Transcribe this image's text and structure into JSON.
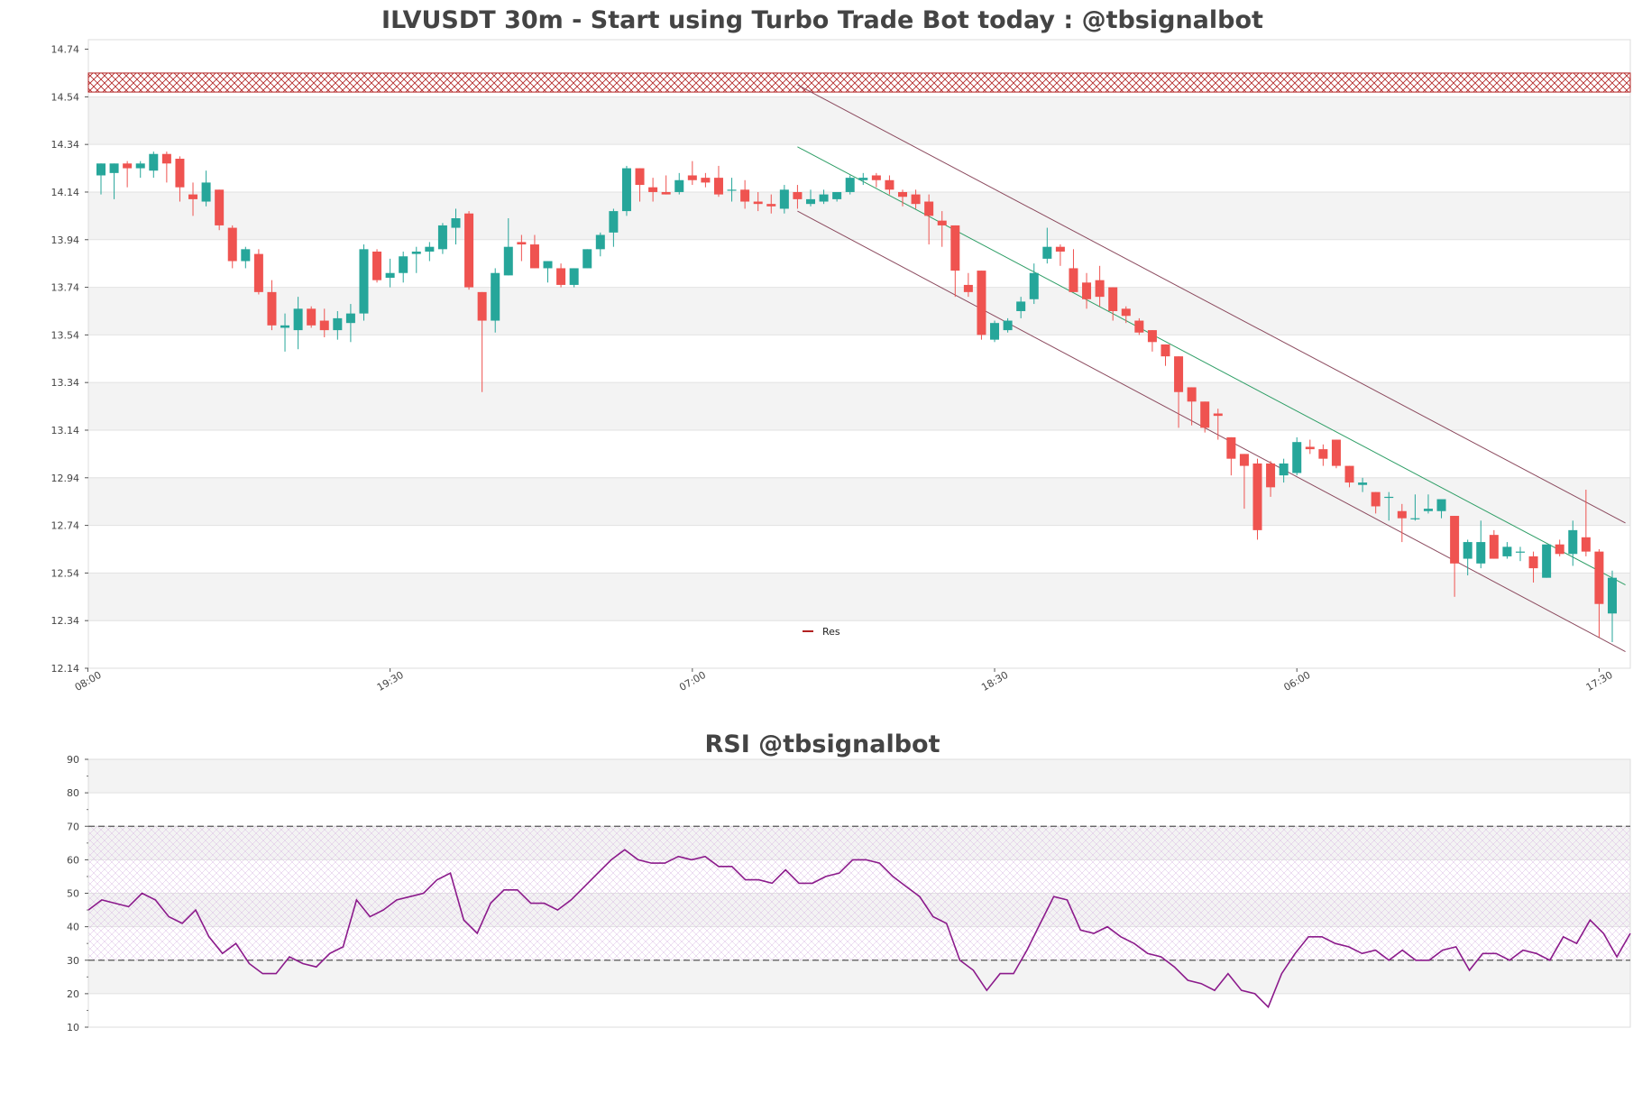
{
  "chart_data": [
    {
      "type": "candlestick",
      "title": "ILVUSDT 30m - Start using Turbo Trade Bot today : @tbsignalbot",
      "symbol": "ILVUSDT",
      "interval": "30m",
      "ylim": [
        12.14,
        14.78
      ],
      "y_ticks": [
        "14.74",
        "14.54",
        "14.34",
        "14.14",
        "13.94",
        "13.74",
        "13.54",
        "13.34",
        "13.14",
        "12.94",
        "12.74",
        "12.54",
        "12.34",
        "12.14"
      ],
      "x_tick_labels": [
        {
          "label": "08:00",
          "index": -1
        },
        {
          "label": "19:30",
          "index": 22
        },
        {
          "label": "07:00",
          "index": 45
        },
        {
          "label": "18:30",
          "index": 68
        },
        {
          "label": "06:00",
          "index": 91
        },
        {
          "label": "17:30",
          "index": 114
        }
      ],
      "candles": [
        [
          14.21,
          14.26,
          14.13,
          14.26
        ],
        [
          14.22,
          14.26,
          14.11,
          14.26
        ],
        [
          14.26,
          14.27,
          14.16,
          14.24
        ],
        [
          14.24,
          14.27,
          14.2,
          14.26
        ],
        [
          14.23,
          14.31,
          14.2,
          14.3
        ],
        [
          14.3,
          14.31,
          14.18,
          14.26
        ],
        [
          14.28,
          14.29,
          14.1,
          14.16
        ],
        [
          14.13,
          14.18,
          14.04,
          14.11
        ],
        [
          14.1,
          14.23,
          14.08,
          14.18
        ],
        [
          14.15,
          14.15,
          13.98,
          14.0
        ],
        [
          13.99,
          14.0,
          13.82,
          13.85
        ],
        [
          13.85,
          13.91,
          13.82,
          13.9
        ],
        [
          13.88,
          13.9,
          13.71,
          13.72
        ],
        [
          13.72,
          13.77,
          13.56,
          13.58
        ],
        [
          13.57,
          13.63,
          13.47,
          13.58
        ],
        [
          13.56,
          13.7,
          13.48,
          13.65
        ],
        [
          13.65,
          13.66,
          13.57,
          13.58
        ],
        [
          13.6,
          13.65,
          13.53,
          13.56
        ],
        [
          13.56,
          13.64,
          13.52,
          13.61
        ],
        [
          13.59,
          13.67,
          13.51,
          13.63
        ],
        [
          13.63,
          13.92,
          13.6,
          13.9
        ],
        [
          13.89,
          13.9,
          13.76,
          13.77
        ],
        [
          13.78,
          13.86,
          13.74,
          13.8
        ],
        [
          13.8,
          13.89,
          13.76,
          13.87
        ],
        [
          13.88,
          13.91,
          13.8,
          13.89
        ],
        [
          13.89,
          13.93,
          13.85,
          13.91
        ],
        [
          13.9,
          14.01,
          13.88,
          14.0
        ],
        [
          13.99,
          14.07,
          13.92,
          14.03
        ],
        [
          14.05,
          14.06,
          13.73,
          13.74
        ],
        [
          13.72,
          13.72,
          13.3,
          13.6
        ],
        [
          13.6,
          13.82,
          13.55,
          13.8
        ],
        [
          13.79,
          14.03,
          13.79,
          13.91
        ],
        [
          13.93,
          13.96,
          13.85,
          13.92
        ],
        [
          13.92,
          13.96,
          13.82,
          13.82
        ],
        [
          13.82,
          13.85,
          13.76,
          13.85
        ],
        [
          13.82,
          13.84,
          13.74,
          13.75
        ],
        [
          13.75,
          13.82,
          13.74,
          13.82
        ],
        [
          13.82,
          13.9,
          13.82,
          13.9
        ],
        [
          13.9,
          13.97,
          13.87,
          13.96
        ],
        [
          13.97,
          14.07,
          13.91,
          14.06
        ],
        [
          14.06,
          14.25,
          14.04,
          14.24
        ],
        [
          14.24,
          14.24,
          14.1,
          14.17
        ],
        [
          14.16,
          14.2,
          14.1,
          14.14
        ],
        [
          14.14,
          14.21,
          14.13,
          14.13
        ],
        [
          14.14,
          14.22,
          14.13,
          14.19
        ],
        [
          14.21,
          14.27,
          14.17,
          14.19
        ],
        [
          14.2,
          14.22,
          14.16,
          14.18
        ],
        [
          14.2,
          14.25,
          14.12,
          14.13
        ],
        [
          14.15,
          14.2,
          14.1,
          14.15
        ],
        [
          14.15,
          14.19,
          14.07,
          14.1
        ],
        [
          14.1,
          14.14,
          14.06,
          14.09
        ],
        [
          14.09,
          14.13,
          14.05,
          14.08
        ],
        [
          14.07,
          14.17,
          14.05,
          14.15
        ],
        [
          14.14,
          14.17,
          14.07,
          14.11
        ],
        [
          14.09,
          14.15,
          14.08,
          14.11
        ],
        [
          14.1,
          14.15,
          14.09,
          14.13
        ],
        [
          14.11,
          14.14,
          14.1,
          14.14
        ],
        [
          14.14,
          14.21,
          14.13,
          14.2
        ],
        [
          14.19,
          14.22,
          14.17,
          14.2
        ],
        [
          14.21,
          14.22,
          14.16,
          14.19
        ],
        [
          14.19,
          14.21,
          14.13,
          14.15
        ],
        [
          14.14,
          14.15,
          14.08,
          14.12
        ],
        [
          14.13,
          14.15,
          14.07,
          14.09
        ],
        [
          14.1,
          14.13,
          13.92,
          14.04
        ],
        [
          14.02,
          14.06,
          13.91,
          14.0
        ],
        [
          14.0,
          14.0,
          13.7,
          13.81
        ],
        [
          13.75,
          13.8,
          13.7,
          13.72
        ],
        [
          13.81,
          13.81,
          13.52,
          13.54
        ],
        [
          13.52,
          13.6,
          13.51,
          13.59
        ],
        [
          13.56,
          13.61,
          13.55,
          13.6
        ],
        [
          13.64,
          13.7,
          13.61,
          13.68
        ],
        [
          13.69,
          13.84,
          13.67,
          13.8
        ],
        [
          13.86,
          13.99,
          13.84,
          13.91
        ],
        [
          13.91,
          13.92,
          13.83,
          13.89
        ],
        [
          13.82,
          13.9,
          13.72,
          13.72
        ],
        [
          13.76,
          13.8,
          13.65,
          13.69
        ],
        [
          13.77,
          13.83,
          13.66,
          13.7
        ],
        [
          13.74,
          13.74,
          13.6,
          13.64
        ],
        [
          13.65,
          13.66,
          13.59,
          13.62
        ],
        [
          13.6,
          13.61,
          13.54,
          13.55
        ],
        [
          13.56,
          13.56,
          13.47,
          13.51
        ],
        [
          13.5,
          13.5,
          13.41,
          13.45
        ],
        [
          13.45,
          13.45,
          13.15,
          13.3
        ],
        [
          13.32,
          13.32,
          13.16,
          13.26
        ],
        [
          13.26,
          13.26,
          13.13,
          13.15
        ],
        [
          13.21,
          13.23,
          13.1,
          13.2
        ],
        [
          13.11,
          13.11,
          12.95,
          13.02
        ],
        [
          13.04,
          13.04,
          12.81,
          12.99
        ],
        [
          13.0,
          13.02,
          12.68,
          12.72
        ],
        [
          13.0,
          13.01,
          12.86,
          12.9
        ],
        [
          12.95,
          13.02,
          12.92,
          13.0
        ],
        [
          12.96,
          13.11,
          12.95,
          13.09
        ],
        [
          13.07,
          13.1,
          13.04,
          13.06
        ],
        [
          13.06,
          13.08,
          12.99,
          13.02
        ],
        [
          13.1,
          13.1,
          12.98,
          12.99
        ],
        [
          12.99,
          12.99,
          12.9,
          12.92
        ],
        [
          12.91,
          12.94,
          12.88,
          12.92
        ],
        [
          12.88,
          12.88,
          12.79,
          12.82
        ],
        [
          12.86,
          12.88,
          12.76,
          12.86
        ],
        [
          12.8,
          12.83,
          12.67,
          12.77
        ],
        [
          12.77,
          12.87,
          12.76,
          12.77
        ],
        [
          12.8,
          12.87,
          12.79,
          12.81
        ],
        [
          12.8,
          12.84,
          12.77,
          12.85
        ],
        [
          12.78,
          12.78,
          12.44,
          12.58
        ],
        [
          12.6,
          12.68,
          12.53,
          12.67
        ],
        [
          12.58,
          12.76,
          12.56,
          12.67
        ],
        [
          12.7,
          12.72,
          12.6,
          12.6
        ],
        [
          12.61,
          12.67,
          12.6,
          12.65
        ],
        [
          12.63,
          12.65,
          12.59,
          12.63
        ],
        [
          12.61,
          12.63,
          12.5,
          12.56
        ],
        [
          12.52,
          12.66,
          12.52,
          12.66
        ],
        [
          12.66,
          12.68,
          12.61,
          12.62
        ],
        [
          12.62,
          12.76,
          12.57,
          12.72
        ],
        [
          12.69,
          12.89,
          12.61,
          12.63
        ],
        [
          12.63,
          12.64,
          12.27,
          12.41
        ],
        [
          12.37,
          12.55,
          12.25,
          12.52
        ]
      ],
      "resistance_zone": {
        "label": "Res",
        "low": 14.56,
        "high": 14.64
      },
      "legend": [
        {
          "label": "Res",
          "color": "#b22222"
        }
      ],
      "channel": {
        "upper": {
          "start": [
            53,
            14.59
          ],
          "end": [
            116,
            12.75
          ]
        },
        "middle": {
          "start": [
            53,
            14.33
          ],
          "end": [
            116,
            12.49
          ]
        },
        "lower": {
          "start": [
            53,
            14.06
          ],
          "end": [
            116,
            12.21
          ]
        }
      },
      "colors": {
        "up": "#26a69a",
        "down": "#ef5350",
        "channel_outer": "#8b4a5e",
        "channel_mid": "#2e9e66",
        "res": "#b22222"
      }
    },
    {
      "type": "line",
      "title": "RSI @tbsignalbot",
      "ylim": [
        10,
        90
      ],
      "y_ticks": [
        "90",
        "80",
        "70",
        "60",
        "50",
        "40",
        "30",
        "20",
        "10"
      ],
      "levels": [
        70,
        30
      ],
      "values": [
        45,
        48,
        47,
        46,
        50,
        48,
        43,
        41,
        45,
        37,
        32,
        35,
        29,
        26,
        26,
        31,
        29,
        28,
        32,
        34,
        48,
        43,
        45,
        48,
        49,
        50,
        54,
        56,
        42,
        38,
        47,
        51,
        51,
        47,
        47,
        45,
        48,
        52,
        56,
        60,
        63,
        60,
        59,
        59,
        61,
        60,
        61,
        58,
        58,
        54,
        54,
        53,
        57,
        53,
        53,
        55,
        56,
        60,
        60,
        59,
        55,
        52,
        49,
        43,
        41,
        30,
        27,
        21,
        26,
        26,
        33,
        41,
        49,
        48,
        39,
        38,
        40,
        37,
        35,
        32,
        31,
        28,
        24,
        23,
        21,
        26,
        21,
        20,
        16,
        26,
        32,
        37,
        37,
        35,
        34,
        32,
        33,
        30,
        33,
        30,
        30,
        33,
        34,
        27,
        32,
        32,
        30,
        33,
        32,
        30,
        37,
        35,
        42,
        38,
        31,
        38
      ],
      "colors": {
        "line": "#8b1a8b",
        "level": "#555555"
      }
    }
  ]
}
